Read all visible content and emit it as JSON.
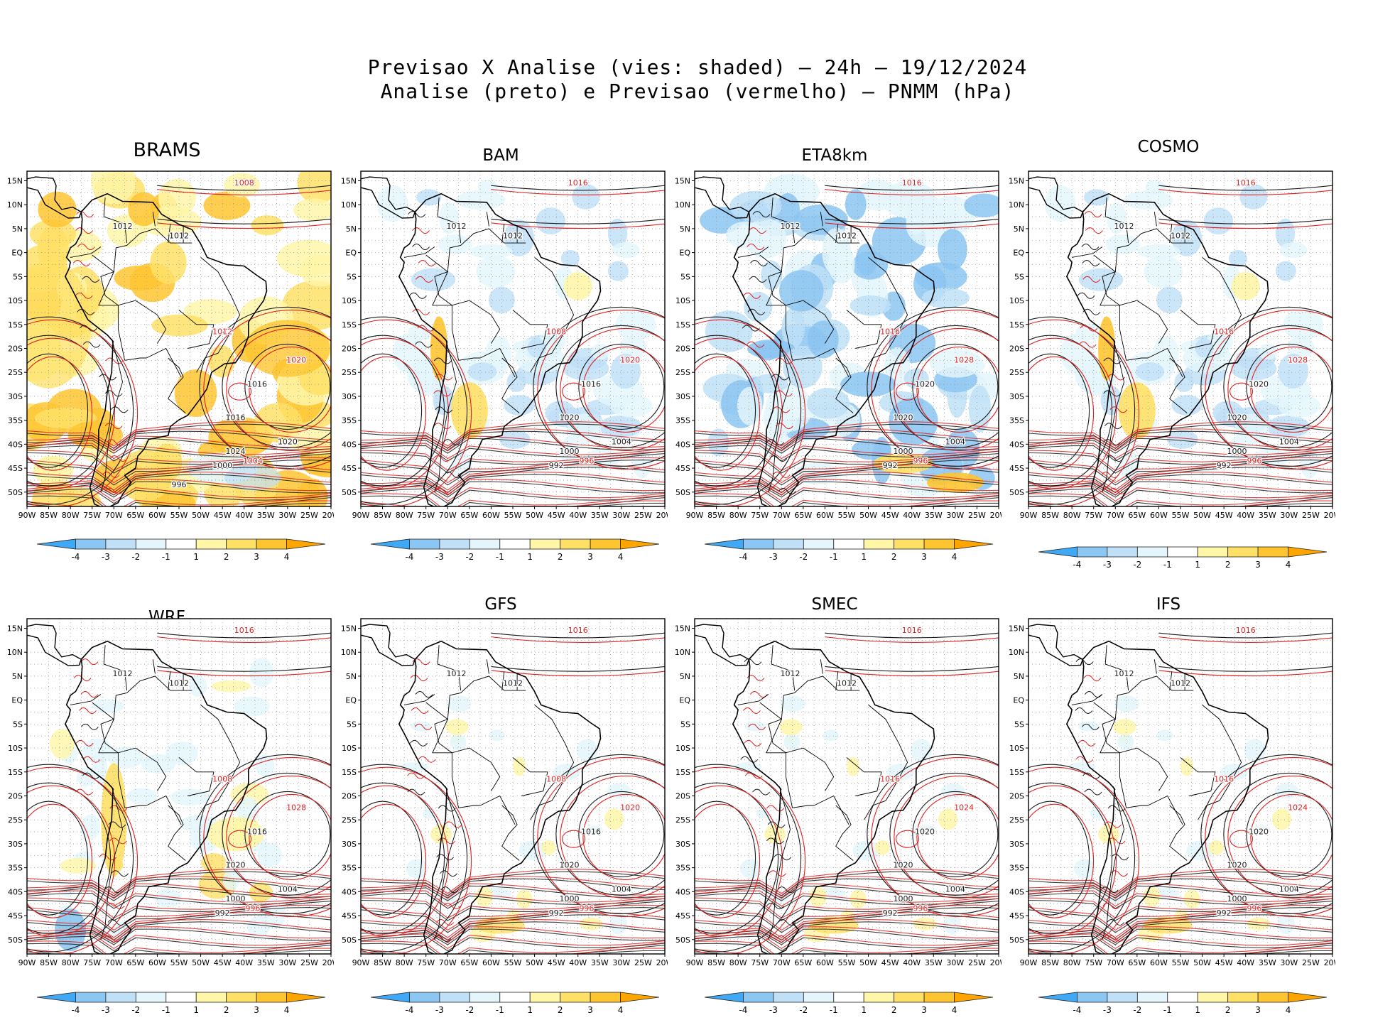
{
  "title": {
    "line1": "Previsao X Analise (vies: shaded) – 24h – 19/12/2024",
    "line2": "Analise (preto) e Previsao (vermelho) – PNMM (hPa)"
  },
  "axes": {
    "lat_labels": [
      "15N",
      "10N",
      "5N",
      "EQ",
      "5S",
      "10S",
      "15S",
      "20S",
      "25S",
      "30S",
      "35S",
      "40S",
      "45S",
      "50S"
    ],
    "lon_labels": [
      "90W",
      "85W",
      "80W",
      "75W",
      "70W",
      "65W",
      "60W",
      "55W",
      "50W",
      "45W",
      "40W",
      "35W",
      "30W",
      "25W",
      "20W"
    ]
  },
  "colorbar": {
    "labels": [
      "-4",
      "-3",
      "-2",
      "-1",
      "1",
      "2",
      "3",
      "4"
    ],
    "colors": [
      "#3fa9f5",
      "#8cc6f2",
      "#bfe0f7",
      "#e4f6fb",
      "#ffffff",
      "#fff6a8",
      "#ffe066",
      "#ffc530",
      "#ffa500"
    ]
  },
  "styles": {
    "analysis_color": "#1a1a1a",
    "forecast_color": "#e02020",
    "land_color": "#000000"
  },
  "panels": [
    {
      "name": "BRAMS",
      "bias": "warm-strong",
      "isobars": [
        "1008",
        "1012",
        "1012",
        "1012",
        "1016",
        "1016",
        "1020",
        "1020",
        "1024",
        "1004",
        "1000",
        "996"
      ]
    },
    {
      "name": "BAM",
      "bias": "cool-mild",
      "isobars": [
        "1016",
        "1012",
        "1012",
        "1008",
        "1016",
        "1020",
        "1020",
        "1004",
        "1000",
        "996",
        "992"
      ]
    },
    {
      "name": "ETA8km",
      "bias": "cool-strong",
      "isobars": [
        "1016",
        "1012",
        "1012",
        "1016",
        "1020",
        "1020",
        "1028",
        "1004",
        "1000",
        "996",
        "992"
      ]
    },
    {
      "name": "COSMO",
      "bias": "cool-mild",
      "isobars": [
        "1016",
        "1012",
        "1012",
        "1016",
        "1020",
        "1020",
        "1028",
        "1004",
        "1000",
        "996",
        "992"
      ]
    },
    {
      "name": "WRF",
      "bias": "mixed",
      "isobars": [
        "1016",
        "1012",
        "1012",
        "1008",
        "1016",
        "1020",
        "1028",
        "1004",
        "1000",
        "996",
        "992"
      ]
    },
    {
      "name": "GFS",
      "bias": "light",
      "isobars": [
        "1016",
        "1012",
        "1012",
        "1008",
        "1016",
        "1020",
        "1020",
        "1004",
        "1000",
        "996",
        "992"
      ]
    },
    {
      "name": "SMEC",
      "bias": "light",
      "isobars": [
        "1016",
        "1012",
        "1012",
        "1016",
        "1020",
        "1020",
        "1024",
        "1004",
        "1000",
        "996",
        "992"
      ]
    },
    {
      "name": "IFS",
      "bias": "light",
      "isobars": [
        "1016",
        "1012",
        "1012",
        "1016",
        "1020",
        "1020",
        "1024",
        "1004",
        "1000",
        "996",
        "992"
      ]
    }
  ]
}
